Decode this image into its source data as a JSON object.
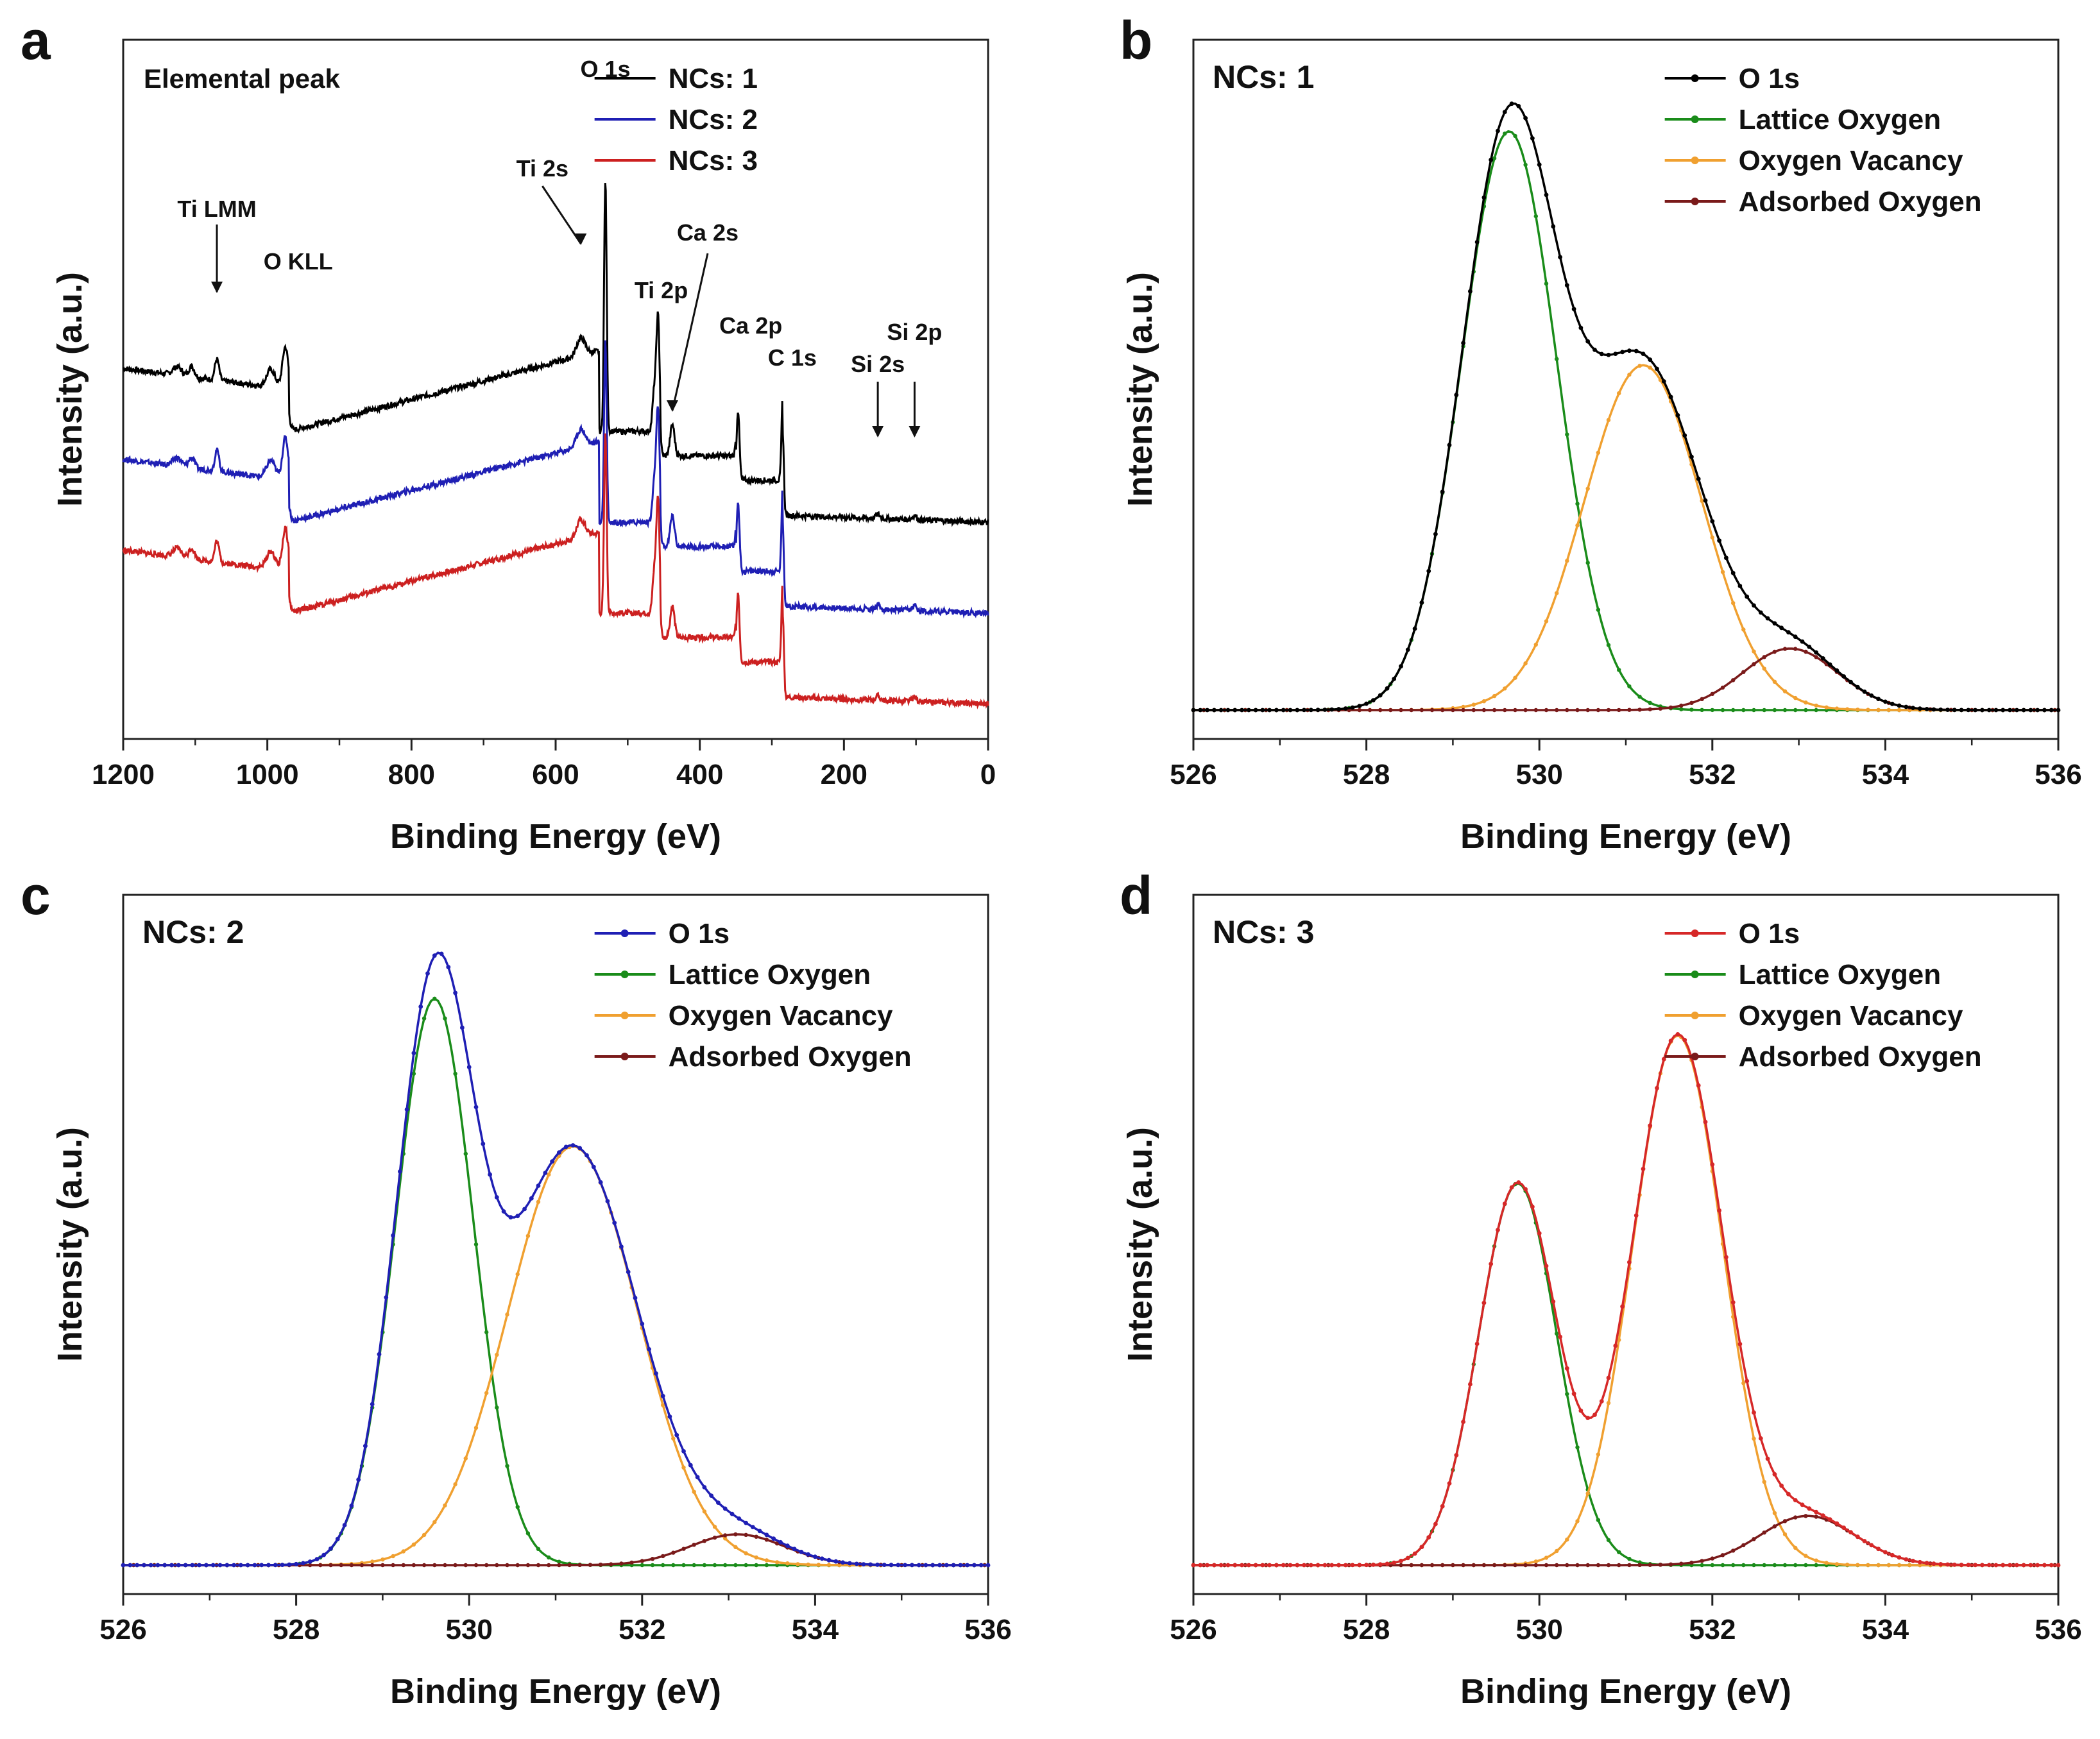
{
  "chart_data": [
    {
      "panel": "a",
      "type": "line",
      "title": "Elemental peak",
      "xlabel": "Binding Energy (eV)",
      "ylabel": "Intensity (a.u.)",
      "xlim": [
        1200,
        0
      ],
      "ylim": [
        0,
        1
      ],
      "x_reversed": true,
      "xticks": [
        1200,
        1000,
        800,
        600,
        400,
        200,
        0
      ],
      "legend_position": "top-right",
      "series": [
        {
          "name": "NCs: 1",
          "color": "#000000",
          "offset": 0.0,
          "start": 0.5
        },
        {
          "name": "NCs: 2",
          "color": "#1f1fb4",
          "offset": -0.13,
          "start": 0.5
        },
        {
          "name": "NCs: 3",
          "color": "#cc2020",
          "offset": -0.26,
          "start": 0.5
        }
      ],
      "annotations": [
        {
          "label": "Ti LMM",
          "x": 1070,
          "arrow": true
        },
        {
          "label": "O KLL",
          "x": 975,
          "arrow": false
        },
        {
          "label": "Ti 2s",
          "x": 565,
          "arrow": true
        },
        {
          "label": "O 1s",
          "x": 531,
          "arrow": false
        },
        {
          "label": "Ti 2p",
          "x": 458,
          "arrow": false
        },
        {
          "label": "Ca 2s",
          "x": 438,
          "arrow": true
        },
        {
          "label": "Ca 2p",
          "x": 347,
          "arrow": false
        },
        {
          "label": "C 1s",
          "x": 285,
          "arrow": false
        },
        {
          "label": "Si 2s",
          "x": 153,
          "arrow": true
        },
        {
          "label": "Si 2p",
          "x": 102,
          "arrow": true
        }
      ]
    },
    {
      "panel": "b",
      "type": "line",
      "title": "NCs: 1",
      "xlabel": "Binding Energy (eV)",
      "ylabel": "Intensity (a.u.)",
      "xlim": [
        526,
        536
      ],
      "ylim": [
        0,
        1.1
      ],
      "xticks": [
        526,
        528,
        530,
        532,
        534,
        536
      ],
      "legend_position": "top-right",
      "series": [
        {
          "name": "O 1s",
          "color": "#000000",
          "role": "envelope"
        },
        {
          "name": "Lattice Oxygen",
          "color": "#1a8c1a",
          "center": 529.65,
          "height": 0.94,
          "sigma": 0.55
        },
        {
          "name": "Oxygen Vacancy",
          "color": "#f0a030",
          "center": 531.2,
          "height": 0.56,
          "sigma": 0.68
        },
        {
          "name": "Adsorbed Oxygen",
          "color": "#7a1a1a",
          "center": 532.9,
          "height": 0.1,
          "sigma": 0.55
        }
      ]
    },
    {
      "panel": "c",
      "type": "line",
      "title": "NCs: 2",
      "xlabel": "Binding Energy (eV)",
      "ylabel": "Intensity (a.u.)",
      "xlim": [
        526,
        536
      ],
      "ylim": [
        0,
        1.1
      ],
      "xticks": [
        526,
        528,
        530,
        532,
        534,
        536
      ],
      "legend_position": "top-right",
      "series": [
        {
          "name": "O 1s",
          "color": "#1f1fb4",
          "role": "envelope"
        },
        {
          "name": "Lattice Oxygen",
          "color": "#1a8c1a",
          "center": 529.6,
          "height": 0.92,
          "sigma": 0.45
        },
        {
          "name": "Oxygen Vacancy",
          "color": "#f0a030",
          "center": 531.2,
          "height": 0.68,
          "sigma": 0.75
        },
        {
          "name": "Adsorbed Oxygen",
          "color": "#7a1a1a",
          "center": 533.1,
          "height": 0.05,
          "sigma": 0.55
        }
      ]
    },
    {
      "panel": "d",
      "type": "line",
      "title": "NCs: 3",
      "xlabel": "Binding Energy (eV)",
      "ylabel": "Intensity (a.u.)",
      "xlim": [
        526,
        536
      ],
      "ylim": [
        0,
        1.1
      ],
      "xticks": [
        526,
        528,
        530,
        532,
        534,
        536
      ],
      "legend_position": "top-right",
      "series": [
        {
          "name": "O 1s",
          "color": "#d62828",
          "role": "envelope"
        },
        {
          "name": "Lattice Oxygen",
          "color": "#1a8c1a",
          "center": 529.75,
          "height": 0.62,
          "sigma": 0.45
        },
        {
          "name": "Oxygen Vacancy",
          "color": "#f0a030",
          "center": 531.6,
          "height": 0.86,
          "sigma": 0.52
        },
        {
          "name": "Adsorbed Oxygen",
          "color": "#7a1a1a",
          "center": 533.1,
          "height": 0.08,
          "sigma": 0.55
        }
      ]
    }
  ]
}
